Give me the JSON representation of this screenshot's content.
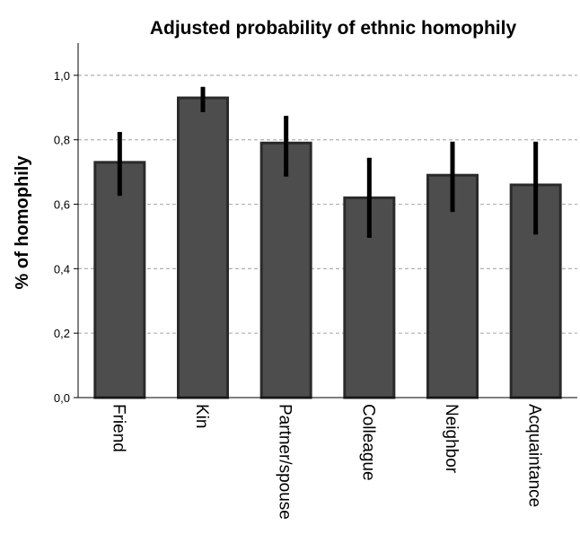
{
  "chart_data": {
    "type": "bar",
    "title": "Adjusted probability of ethnic homophily",
    "ylabel": "% of homophily",
    "xlabel": "",
    "categories": [
      "Friend",
      "Kin",
      "Partner/spouse",
      "Colleague",
      "Neighbor",
      "Acquaintance"
    ],
    "values": [
      0.73,
      0.93,
      0.79,
      0.62,
      0.69,
      0.66
    ],
    "error_low": [
      0.63,
      0.89,
      0.69,
      0.5,
      0.58,
      0.51
    ],
    "error_high": [
      0.82,
      0.96,
      0.87,
      0.74,
      0.79,
      0.79
    ],
    "ylim": [
      0,
      1.1
    ],
    "yticks": [
      "0,0",
      "0,2",
      "0,4",
      "0,6",
      "0,8",
      "1,0"
    ],
    "ytick_values": [
      0,
      0.2,
      0.4,
      0.6,
      0.8,
      1.0
    ],
    "grid": true,
    "bar_color": "#4d4d4d",
    "bar_edge_color": "#2a2a2a",
    "error_color": "#000000",
    "grid_color": "#b0b0b0"
  }
}
